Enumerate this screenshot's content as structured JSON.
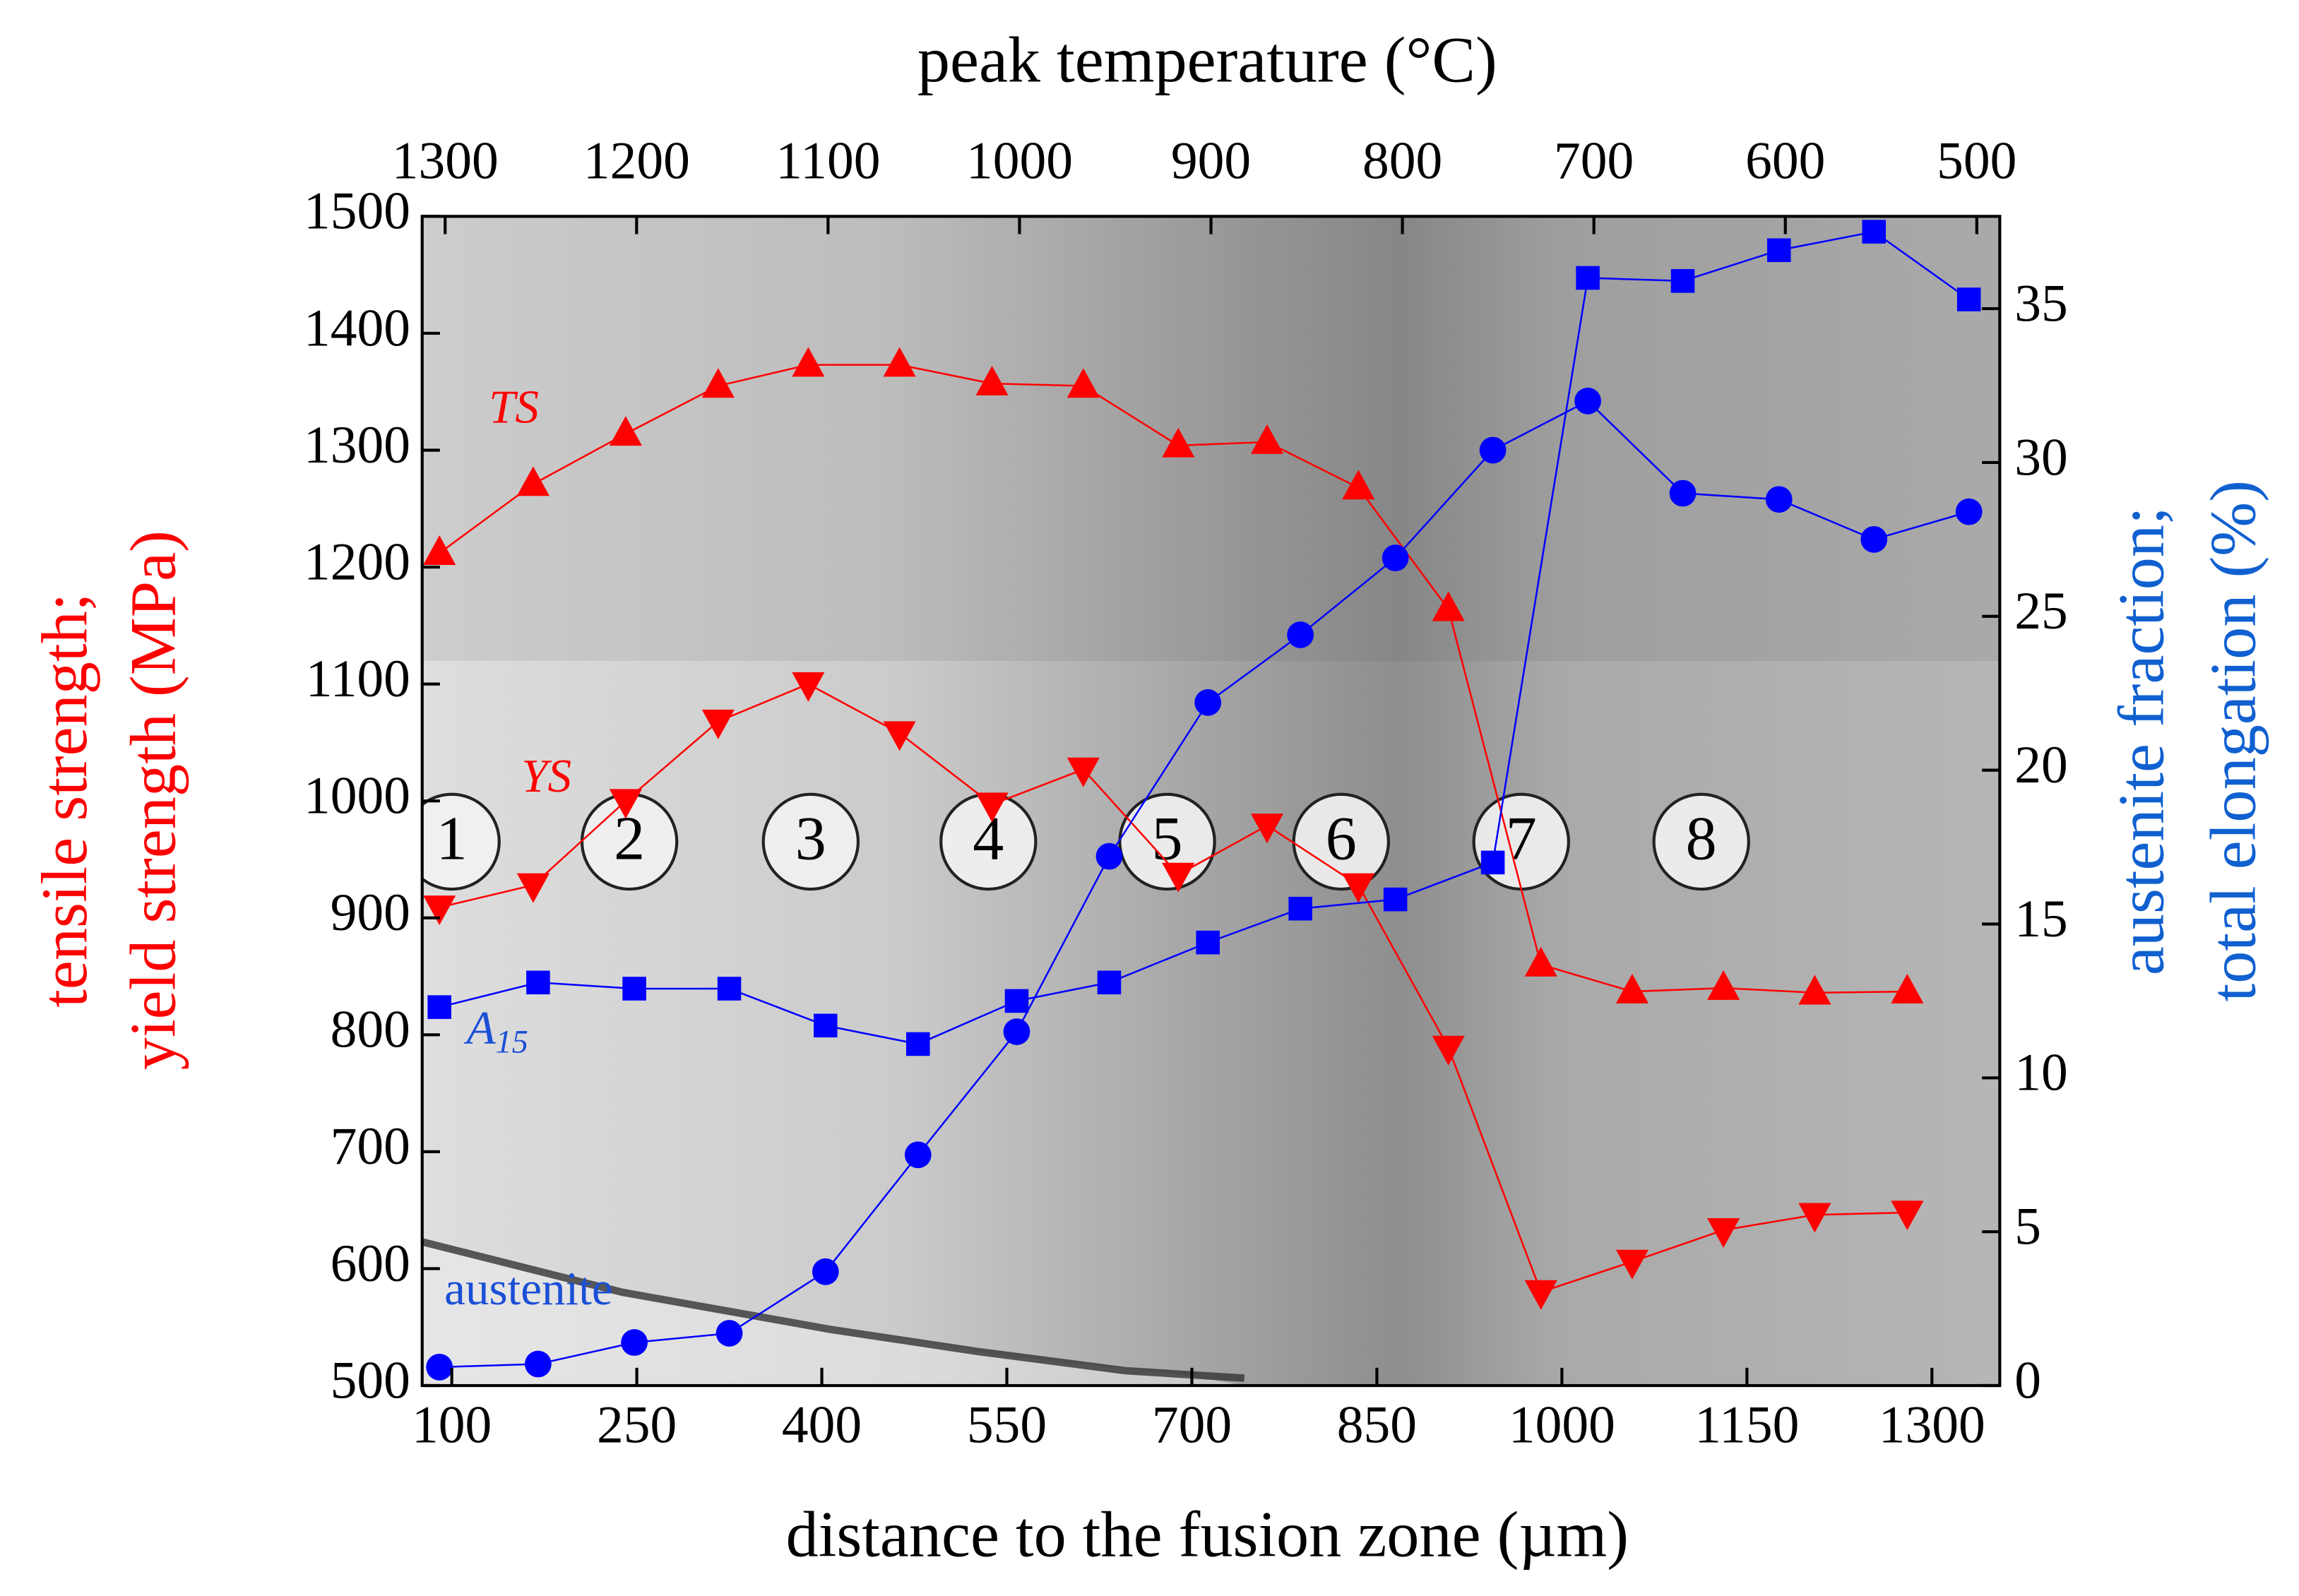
{
  "chart_data": {
    "type": "line",
    "xlabel": "distance to the fusion zone (µm)",
    "x2label": "peak temperature (°C)",
    "ylabel": [
      "tensile strength;",
      "yield strength (MPa)"
    ],
    "y2label": [
      "austenite fraction;",
      "total elongation (%)"
    ],
    "xlim": [
      76,
      1355
    ],
    "xticks": [
      100,
      250,
      400,
      550,
      700,
      850,
      1000,
      1150,
      1300
    ],
    "x2lim": [
      1312,
      488
    ],
    "x2ticks": [
      1300,
      1200,
      1100,
      1000,
      900,
      800,
      700,
      600,
      500
    ],
    "ylim": [
      500,
      1500
    ],
    "yticks": [
      500,
      600,
      700,
      800,
      900,
      1000,
      1100,
      1200,
      1300,
      1400,
      1500
    ],
    "y2lim": [
      0,
      38
    ],
    "y2ticks": [
      0,
      5,
      10,
      15,
      20,
      25,
      30,
      35
    ],
    "zones": {
      "labels": [
        "1",
        "2",
        "3",
        "4",
        "5",
        "6",
        "7",
        "8"
      ],
      "x": [
        100,
        244,
        391,
        535,
        680,
        821,
        967,
        1113
      ]
    },
    "series": [
      {
        "name": "TS",
        "color": "#ff0000",
        "marker": "triangle-up",
        "x": [
          90,
          166,
          241,
          316,
          389,
          463,
          538,
          612,
          689,
          761,
          835,
          908,
          983,
          1057,
          1131,
          1205,
          1280
        ],
        "values": [
          1212,
          1271,
          1314,
          1355,
          1373,
          1373,
          1357,
          1355,
          1304,
          1307,
          1268,
          1164,
          860,
          837,
          840,
          836,
          837
        ]
      },
      {
        "name": "YS",
        "color": "#ff0000",
        "marker": "triangle-down",
        "x": [
          90,
          166,
          241,
          316,
          389,
          463,
          538,
          612,
          689,
          761,
          835,
          908,
          983,
          1057,
          1131,
          1205,
          1280
        ],
        "values": [
          909,
          928,
          1000,
          1068,
          1100,
          1058,
          997,
          1027,
          937,
          979,
          928,
          789,
          580,
          606,
          633,
          646,
          648
        ]
      },
      {
        "name": "A",
        "name_subscript": "15",
        "color": "#0000ff",
        "marker": "square",
        "axis": "y2",
        "x": [
          90,
          170,
          248,
          325,
          403,
          478,
          558,
          633,
          713,
          788,
          865,
          944,
          1021,
          1098,
          1176,
          1253,
          1330
        ],
        "values": [
          12.3,
          13.1,
          12.9,
          12.9,
          11.7,
          11.1,
          12.5,
          13.1,
          14.4,
          15.5,
          15.8,
          17.0,
          36.0,
          35.9,
          36.9,
          37.5,
          35.3
        ]
      },
      {
        "name": "austenite",
        "color": "#0000ff",
        "marker": "circle",
        "axis": "y2",
        "x": [
          90,
          170,
          248,
          325,
          403,
          478,
          558,
          633,
          713,
          788,
          865,
          944,
          1021,
          1098,
          1176,
          1253,
          1330
        ],
        "values": [
          0.6,
          0.7,
          1.4,
          1.7,
          3.7,
          7.5,
          11.5,
          17.2,
          22.2,
          24.4,
          26.9,
          30.4,
          32.0,
          29.0,
          28.8,
          27.5,
          28.4
        ]
      }
    ]
  }
}
